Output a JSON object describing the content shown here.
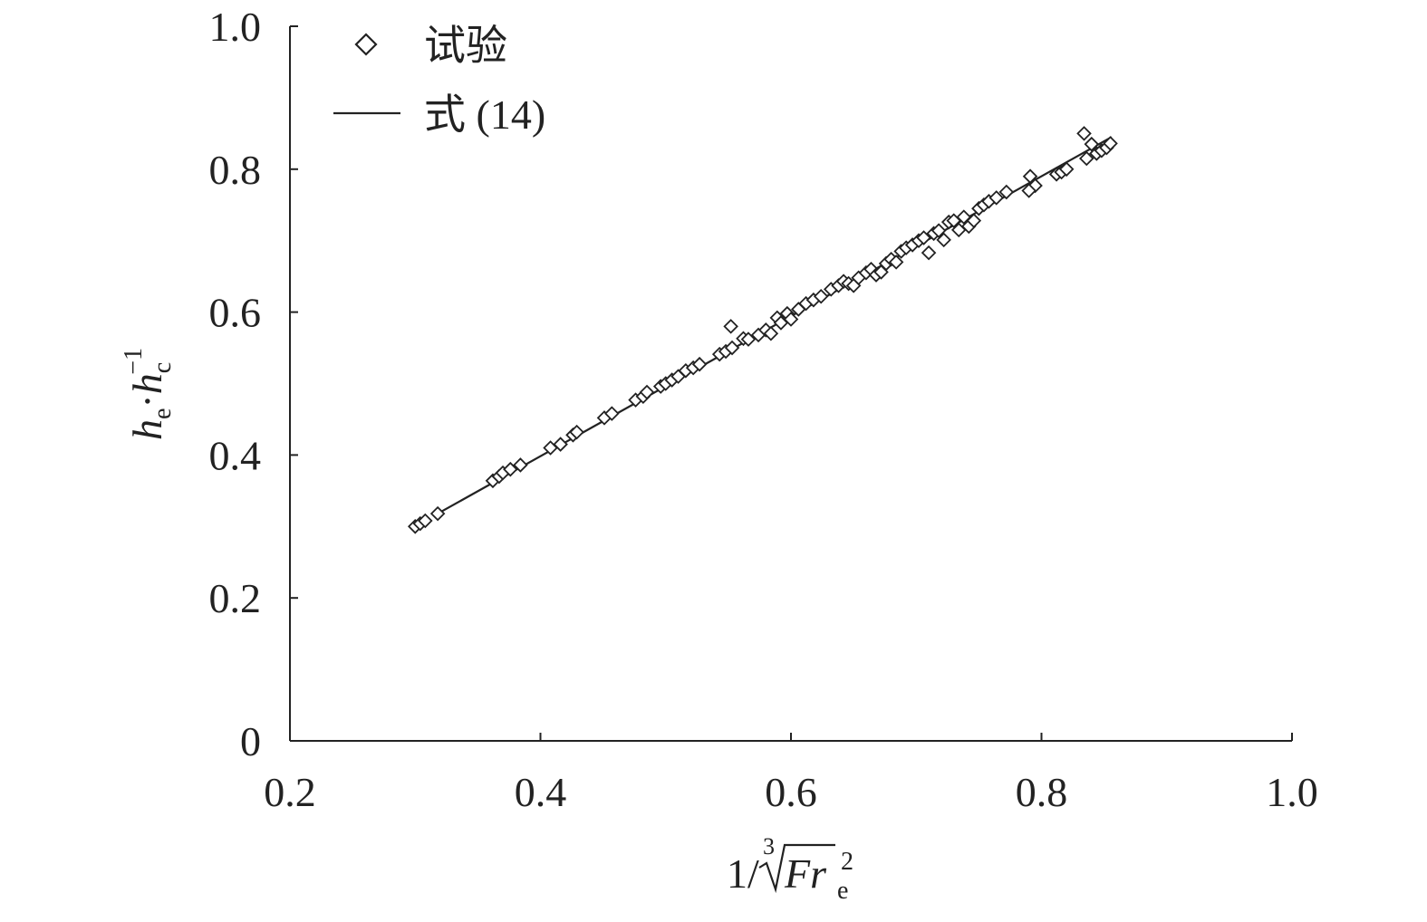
{
  "chart_data": {
    "type": "scatter",
    "x_range": [
      0.2,
      1.0
    ],
    "y_range": [
      0,
      1.0
    ],
    "x_ticks": [
      "0.2",
      "0.4",
      "0.6",
      "0.8",
      "1.0"
    ],
    "y_ticks": [
      "0",
      "0.2",
      "0.4",
      "0.6",
      "0.8",
      "1.0"
    ],
    "x_tick_values": [
      0.2,
      0.4,
      0.6,
      0.8,
      1.0
    ],
    "y_tick_values": [
      0,
      0.2,
      0.4,
      0.6,
      0.8,
      1.0
    ],
    "xlabel": {
      "prefix": "1/",
      "root_index": "3",
      "radicand": "Fr",
      "subscript": "e",
      "superscript": "2"
    },
    "ylabel": {
      "h1": "h",
      "sub1": "e",
      "dot": "·",
      "h2": "h",
      "sub2": "c",
      "sup2": "−1"
    },
    "grid": false,
    "legend_position": "top-left",
    "legend": [
      {
        "label": "试验",
        "marker": "diamond"
      },
      {
        "label": "式 (14)",
        "marker": "line"
      }
    ],
    "series": [
      {
        "name": "试验",
        "marker": "diamond",
        "points": [
          [
            0.3,
            0.3
          ],
          [
            0.304,
            0.304
          ],
          [
            0.308,
            0.308
          ],
          [
            0.318,
            0.318
          ],
          [
            0.362,
            0.364
          ],
          [
            0.367,
            0.37
          ],
          [
            0.37,
            0.375
          ],
          [
            0.376,
            0.38
          ],
          [
            0.384,
            0.386
          ],
          [
            0.408,
            0.41
          ],
          [
            0.416,
            0.415
          ],
          [
            0.426,
            0.428
          ],
          [
            0.429,
            0.432
          ],
          [
            0.451,
            0.452
          ],
          [
            0.457,
            0.458
          ],
          [
            0.476,
            0.477
          ],
          [
            0.482,
            0.482
          ],
          [
            0.485,
            0.488
          ],
          [
            0.496,
            0.496
          ],
          [
            0.5,
            0.5
          ],
          [
            0.505,
            0.505
          ],
          [
            0.51,
            0.51
          ],
          [
            0.516,
            0.518
          ],
          [
            0.522,
            0.522
          ],
          [
            0.527,
            0.527
          ],
          [
            0.543,
            0.541
          ],
          [
            0.548,
            0.545
          ],
          [
            0.553,
            0.55
          ],
          [
            0.552,
            0.58
          ],
          [
            0.562,
            0.563
          ],
          [
            0.566,
            0.562
          ],
          [
            0.574,
            0.568
          ],
          [
            0.58,
            0.575
          ],
          [
            0.584,
            0.57
          ],
          [
            0.589,
            0.592
          ],
          [
            0.592,
            0.585
          ],
          [
            0.597,
            0.598
          ],
          [
            0.6,
            0.59
          ],
          [
            0.606,
            0.604
          ],
          [
            0.612,
            0.612
          ],
          [
            0.618,
            0.617
          ],
          [
            0.624,
            0.622
          ],
          [
            0.632,
            0.632
          ],
          [
            0.638,
            0.637
          ],
          [
            0.642,
            0.643
          ],
          [
            0.646,
            0.64
          ],
          [
            0.65,
            0.637
          ],
          [
            0.654,
            0.648
          ],
          [
            0.66,
            0.655
          ],
          [
            0.664,
            0.66
          ],
          [
            0.668,
            0.652
          ],
          [
            0.672,
            0.656
          ],
          [
            0.676,
            0.668
          ],
          [
            0.68,
            0.674
          ],
          [
            0.684,
            0.67
          ],
          [
            0.688,
            0.685
          ],
          [
            0.692,
            0.69
          ],
          [
            0.697,
            0.694
          ],
          [
            0.702,
            0.7
          ],
          [
            0.706,
            0.704
          ],
          [
            0.71,
            0.683
          ],
          [
            0.714,
            0.71
          ],
          [
            0.718,
            0.714
          ],
          [
            0.722,
            0.701
          ],
          [
            0.726,
            0.726
          ],
          [
            0.73,
            0.728
          ],
          [
            0.734,
            0.715
          ],
          [
            0.738,
            0.733
          ],
          [
            0.742,
            0.72
          ],
          [
            0.746,
            0.728
          ],
          [
            0.75,
            0.745
          ],
          [
            0.754,
            0.75
          ],
          [
            0.758,
            0.755
          ],
          [
            0.764,
            0.76
          ],
          [
            0.772,
            0.768
          ],
          [
            0.791,
            0.79
          ],
          [
            0.795,
            0.777
          ],
          [
            0.79,
            0.77
          ],
          [
            0.812,
            0.793
          ],
          [
            0.816,
            0.796
          ],
          [
            0.82,
            0.8
          ],
          [
            0.834,
            0.85
          ],
          [
            0.836,
            0.815
          ],
          [
            0.84,
            0.835
          ],
          [
            0.844,
            0.822
          ],
          [
            0.848,
            0.826
          ],
          [
            0.852,
            0.83
          ],
          [
            0.855,
            0.836
          ]
        ]
      },
      {
        "name": "式 (14)",
        "marker": "line",
        "points": [
          [
            0.318,
            0.318
          ],
          [
            0.856,
            0.845
          ]
        ]
      }
    ]
  }
}
